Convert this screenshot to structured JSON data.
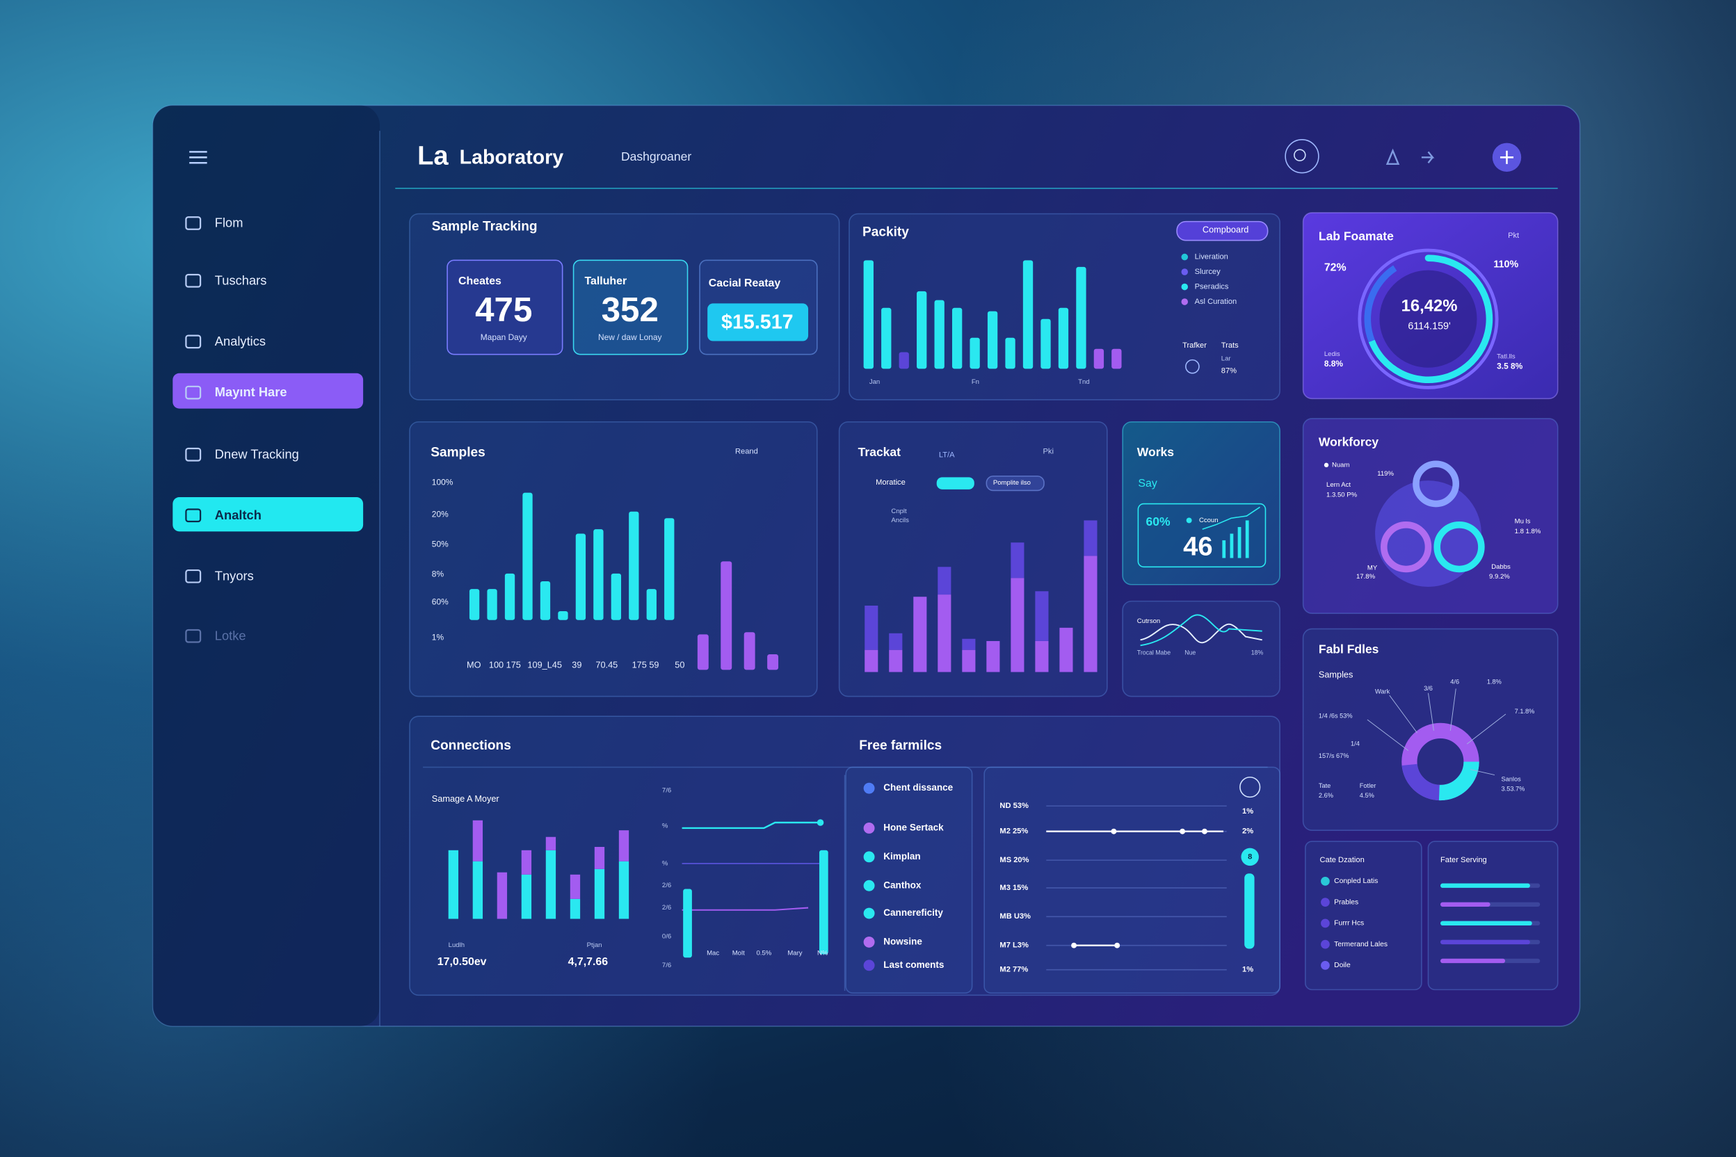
{
  "header": {
    "logo": "La",
    "title": "Laboratory",
    "tab": "Dashgroaner"
  },
  "sidebar": [
    "Flom",
    "Tuschars",
    "Analytics",
    "Mayınt Hare",
    "Dnew Tracking",
    "Analtch",
    "Tnyors",
    "Lotke"
  ],
  "sample_tracking": {
    "title": "Sample Tracking",
    "cards": [
      {
        "label": "Cheates",
        "value": 475,
        "note": "Mapan Dayy"
      },
      {
        "label": "Talluher",
        "value": 352,
        "note": "New / daw Lonay"
      },
      {
        "label": "Cacial Reatay",
        "value": "$15.517"
      }
    ]
  },
  "packity": {
    "title": "Packity",
    "button": "Compboard",
    "legend": [
      "Liveration",
      "Slurcey",
      "Pseradics",
      "Asl Curation"
    ],
    "legend_colors": [
      "#22c8d8",
      "#6a5cf0",
      "#2ae8f0",
      "#b06cf0"
    ],
    "x_labels": [
      "Jan",
      "Fn",
      "Tnd"
    ],
    "bars": {
      "values": [
        98,
        55,
        15,
        70,
        62,
        55,
        28,
        52,
        28,
        98,
        45,
        55,
        92,
        18,
        18
      ],
      "colors": [
        "#2ae8f0",
        "#2ae8f0",
        "#5b45d8",
        "#2ae8f0",
        "#2ae8f0",
        "#2ae8f0",
        "#2ae8f0",
        "#2ae8f0",
        "#2ae8f0",
        "#2ae8f0",
        "#2ae8f0",
        "#2ae8f0",
        "#2ae8f0",
        "#a35cf0",
        "#a35cf0"
      ]
    },
    "footer": {
      "left": "Trafker",
      "right": "Trats",
      "sub": "Lar",
      "pct": "87%"
    }
  },
  "lab_foamate": {
    "title": "Lab Foamate",
    "pill": "Pkt",
    "left": "72%",
    "right": "110%",
    "center": "16,42%",
    "center_sub": "6114.159'",
    "bl_label": "Ledis",
    "bl_value": "8.8%",
    "br_label": "Tatl.lls",
    "br_value": "3.5 8%"
  },
  "samples": {
    "title": "Samples",
    "filter": "Reand",
    "y_labels": [
      "100%",
      "20%",
      "50%",
      "8%",
      "60%",
      "1%"
    ],
    "x_labels": [
      "MO",
      "100 175",
      "109_L45",
      "39",
      "70.45",
      "175 59",
      "50"
    ],
    "series": [
      {
        "color": "#2ae8f0",
        "values": [
          28,
          28,
          42,
          115,
          35,
          8,
          78,
          82,
          42,
          98,
          28,
          92
        ]
      },
      {
        "color": "#a35cf0",
        "values": [
          32,
          98,
          34,
          14
        ]
      }
    ]
  },
  "trackat": {
    "title": "Trackat",
    "tag": "LT/A",
    "menu": "Pki",
    "toggle": "Moratice",
    "pill": "Pomplite ilso",
    "legend": [
      "Cnplt",
      "Ancils"
    ],
    "series": [
      {
        "color": "#a35cf0",
        "values": [
          20,
          20,
          68,
          70,
          20,
          28,
          85,
          28,
          40,
          105
        ]
      },
      {
        "color": "#5b45d8",
        "values": [
          40,
          15,
          0,
          25,
          10,
          0,
          32,
          45,
          0,
          32
        ]
      }
    ]
  },
  "works": {
    "title": "Works",
    "subtitle": "Say",
    "pct": "60%",
    "count_label": "Ccoun",
    "count": 46
  },
  "trend": {
    "title": "Cutrson",
    "labels": [
      "Trocal Mabe",
      "Nue",
      "18%"
    ]
  },
  "workforcy": {
    "title": "Workforcy",
    "legend": "Nuam",
    "labels": [
      "Lern Act",
      "1.3.50 P%",
      "119%",
      "Mu ls",
      "1.8 1.8%",
      "MY",
      "17.8%",
      "Dabbs",
      "9.9.2%"
    ]
  },
  "fabl_fdles": {
    "title": "Fabl Fdles",
    "subtitle": "Samples",
    "labels": [
      "Wark",
      "3/6",
      "4/6",
      "1.8%",
      "7.1.8%",
      "1/4 /6s 53%",
      "1/4",
      "157/s 67%",
      "Tate",
      "2.6%",
      "Fotler",
      "4.5%",
      "Sanlos",
      "3.53.7%"
    ]
  },
  "connections": {
    "title": "Connections",
    "subtitle": "Samage A Moyer",
    "stats": [
      {
        "label": "Ludlh",
        "value": "17,0.50ev"
      },
      {
        "label": "Ptjan",
        "value": "4,7,7.66"
      }
    ],
    "series": [
      {
        "color": "#2ae8f0",
        "values": [
          62,
          52,
          0,
          40,
          62,
          18,
          45,
          52
        ]
      },
      {
        "color": "#a35cf0",
        "values": [
          0,
          37,
          42,
          22,
          12,
          22,
          20,
          28
        ]
      }
    ],
    "y_labels": [
      "7/6",
      "%",
      "%",
      "2/6",
      "2/6",
      "0/6",
      "7/6"
    ],
    "x_labels": [
      "Mac",
      "Molt",
      "0.5%",
      "Mary",
      "N%"
    ]
  },
  "free_farmilcs": {
    "title": "Free farmilcs",
    "items": [
      "Chent dissance",
      "Hone Sertack",
      "Kimplan",
      "Canthox",
      "Cannereficity",
      "Nowsine",
      "Last coments"
    ],
    "item_colors": [
      "#4f7cf5",
      "#b06cf0",
      "#2ae8f0",
      "#2ae8f0",
      "#2ae8f0",
      "#b06cf0",
      "#5b45d8"
    ],
    "sliders": [
      "ND 53%",
      "M2 25%",
      "MS 20%",
      "M3 15%",
      "MB U3%",
      "M7 L3%",
      "M2 77%"
    ],
    "right_labels": [
      "1%",
      "2%",
      "8",
      "1%"
    ]
  },
  "cate_dzation": {
    "title": "Cate Dzation",
    "items": [
      "Conpled Latis",
      "Prables",
      "Furrr Hcs",
      "Termerand Lales",
      "Doile"
    ],
    "colors": [
      "#2ac8d8",
      "#5b45d8",
      "#5b45d8",
      "#5b45d8",
      "#6a5cf0"
    ]
  },
  "fater_serving": {
    "title": "Fater Serving",
    "values": [
      90,
      50,
      92,
      90,
      65
    ],
    "colors": [
      "#2ae8f0",
      "#a35cf0",
      "#2ae8f0",
      "#5b45d8",
      "#a35cf0"
    ]
  }
}
